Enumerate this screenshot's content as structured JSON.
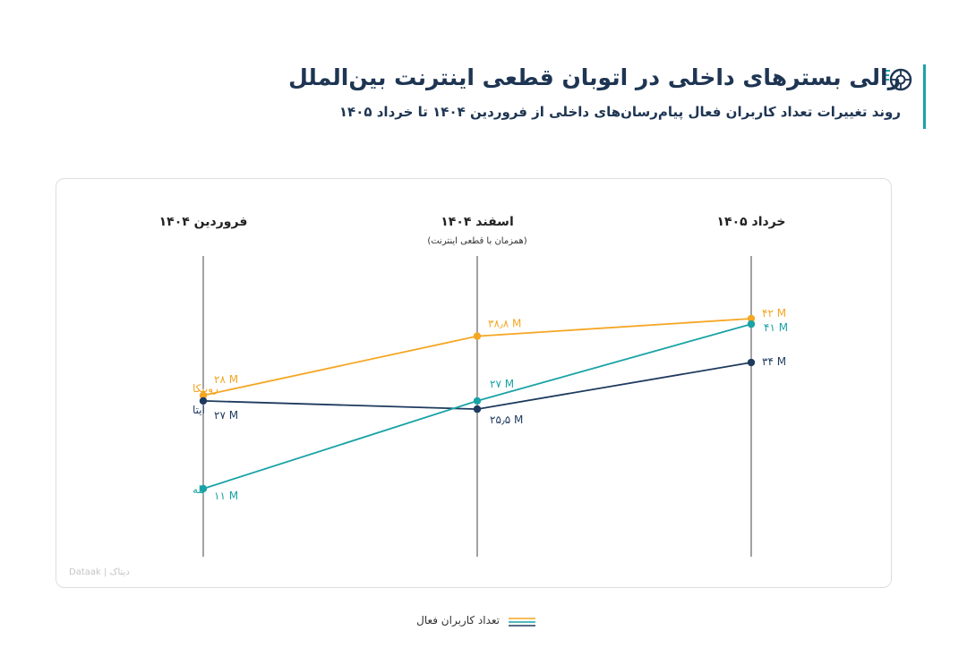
{
  "header": {
    "title": "رالی بسترهای داخلی در اتوبان قطعی اینترنت بین‌الملل",
    "subtitle": "روند تغییرات تعداد کاربران فعال پیام‌رسان‌های داخلی از فروردین ۱۴۰۴ تا خرداد ۱۴۰۵",
    "logo_icon": "wheel-gauge-icon"
  },
  "colors": {
    "rubika": "#f5a623",
    "eitaa": "#1e3a5f",
    "bale": "#1aa3a6",
    "axis": "#444444",
    "accent": "#1aa3a6"
  },
  "watermark": "Dataak | دیتاک",
  "legend": {
    "label": "تعداد کاربران فعال"
  },
  "chart_data": {
    "type": "line",
    "title": "رالی بسترهای داخلی در اتوبان قطعی اینترنت بین‌الملل",
    "subtitle": "روند تغییرات تعداد کاربران فعال پیام‌رسان‌های داخلی از فروردین ۱۴۰۴ تا خرداد ۱۴۰۵",
    "categories": [
      "فروردین ۱۴۰۴",
      "اسفند ۱۴۰۴",
      "خرداد ۱۴۰۵"
    ],
    "category_notes": [
      "",
      "(همزمان با قطعی اینترنت)",
      ""
    ],
    "unit": "M",
    "ylim": [
      0,
      50
    ],
    "grid": false,
    "legend_position": "bottom-center",
    "series": [
      {
        "name": "روبیکا",
        "key": "rubika",
        "values": [
          28,
          38.8,
          42
        ],
        "labels": [
          "۲۸ M",
          "۳۸٫۸ M",
          "۴۲ M"
        ]
      },
      {
        "name": "ایتا",
        "key": "eitaa",
        "values": [
          27,
          25.5,
          34
        ],
        "labels": [
          "۲۷ M",
          "۲۵٫۵ M",
          "۳۴ M"
        ]
      },
      {
        "name": "بله",
        "key": "bale",
        "values": [
          11,
          27,
          41
        ],
        "labels": [
          "۱۱ M",
          "۲۷ M",
          "۴۱ M"
        ]
      }
    ]
  }
}
